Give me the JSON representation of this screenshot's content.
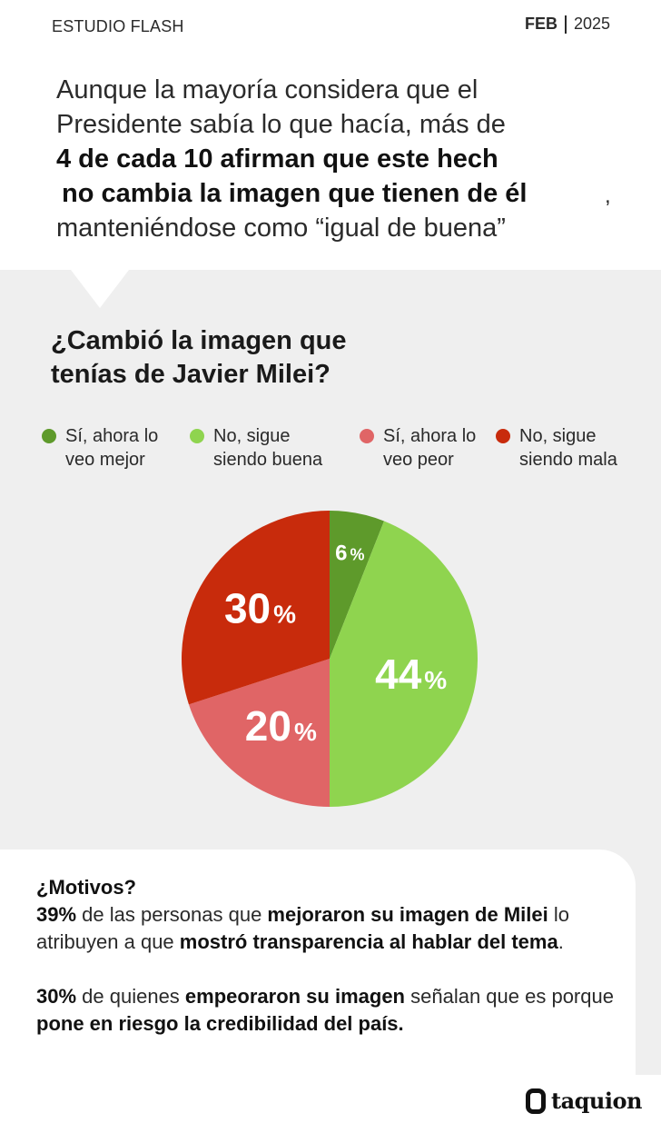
{
  "header": {
    "label": "ESTUDIO FLASH",
    "month": "FEB",
    "year": "2025"
  },
  "headline": {
    "line1": "Aunque la mayoría considera que el",
    "line2": "Presidente sabía lo que hacía, más de",
    "line3": "4 de cada 10 afirman que este hech",
    "line4": "no cambia la imagen que tienen de él",
    "comma": ",",
    "line5": "manteniéndose como “igual de buena”"
  },
  "question": {
    "line1": "¿Cambió la imagen que",
    "line2": "tenías de Javier Milei?"
  },
  "colors": {
    "dark_green": "#5e9a2b",
    "light_green": "#8fd44f",
    "light_red": "#e06566",
    "dark_red": "#c82b0c",
    "panel_bg": "#efefef"
  },
  "chart_data": {
    "type": "pie",
    "title": "¿Cambió la imagen que tenías de Javier Milei?",
    "legend_position": "top",
    "slices": [
      {
        "label": "Sí, ahora lo veo mejor",
        "value": 6,
        "color": "#5e9a2b",
        "pct_label": "6",
        "pct_sign": "%"
      },
      {
        "label": "No, sigue siendo buena",
        "value": 44,
        "color": "#8fd44f",
        "pct_label": "44",
        "pct_sign": "%"
      },
      {
        "label": "Sí, ahora lo veo peor",
        "value": 20,
        "color": "#e06566",
        "pct_label": "20",
        "pct_sign": "%"
      },
      {
        "label": "No, sigue siendo mala",
        "value": 30,
        "color": "#c82b0c",
        "pct_label": "30",
        "pct_sign": "%"
      }
    ]
  },
  "legend": [
    {
      "line1": "Sí, ahora lo",
      "line2": "veo mejor",
      "color": "#5e9a2b"
    },
    {
      "line1": "No, sigue",
      "line2": "siendo buena",
      "color": "#8fd44f"
    },
    {
      "line1": "Sí, ahora lo",
      "line2": "veo peor",
      "color": "#e06566"
    },
    {
      "line1": "No, sigue",
      "line2": "siendo mala",
      "color": "#c82b0c"
    }
  ],
  "motivos": {
    "title": "¿Motivos?",
    "p1": {
      "pct": "39%",
      "t1": " de las personas que ",
      "b1": "mejoraron su imagen de Milei",
      "t2": " lo atribuyen a que ",
      "b2": "mostró transparencia al hablar del tema",
      "t3": "."
    },
    "p2": {
      "pct": "30%",
      "t1": " de quienes ",
      "b1": "empeoraron su imagen",
      "t2": " señalan que es porque ",
      "b2": "pone en riesgo la credibilidad del país."
    }
  },
  "brand": {
    "logo_icon": "taquion-logo-icon",
    "name": "taquion"
  }
}
